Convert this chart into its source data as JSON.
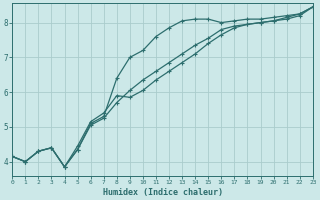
{
  "xlabel": "Humidex (Indice chaleur)",
  "ylabel": "",
  "background_color": "#cce8e8",
  "grid_color": "#aacccc",
  "line_color": "#2d6e6e",
  "x_values": [
    0,
    1,
    2,
    3,
    4,
    5,
    6,
    7,
    8,
    9,
    10,
    11,
    12,
    13,
    14,
    15,
    16,
    17,
    18,
    19,
    20,
    21,
    22,
    23
  ],
  "line1_y": [
    4.15,
    4.0,
    4.3,
    4.4,
    3.85,
    4.35,
    5.1,
    5.3,
    6.4,
    7.0,
    7.2,
    7.6,
    7.85,
    8.05,
    8.1,
    8.1,
    8.0,
    8.05,
    8.1,
    8.1,
    8.15,
    8.2,
    8.25,
    8.45
  ],
  "line2_y": [
    4.15,
    4.0,
    4.3,
    4.4,
    3.85,
    4.45,
    5.15,
    5.4,
    5.9,
    5.85,
    6.05,
    6.35,
    6.6,
    6.85,
    7.1,
    7.4,
    7.65,
    7.85,
    7.95,
    8.0,
    8.05,
    8.15,
    8.25,
    8.45
  ],
  "line3_y": [
    4.15,
    4.0,
    4.3,
    4.4,
    3.85,
    4.35,
    5.05,
    5.25,
    5.7,
    6.05,
    6.35,
    6.6,
    6.85,
    7.1,
    7.35,
    7.55,
    7.8,
    7.9,
    7.95,
    8.0,
    8.05,
    8.1,
    8.2,
    8.45
  ],
  "ylim": [
    3.6,
    8.55
  ],
  "xlim": [
    0,
    23
  ],
  "yticks": [
    4,
    5,
    6,
    7,
    8
  ],
  "xticks": [
    0,
    1,
    2,
    3,
    4,
    5,
    6,
    7,
    8,
    9,
    10,
    11,
    12,
    13,
    14,
    15,
    16,
    17,
    18,
    19,
    20,
    21,
    22,
    23
  ],
  "xtick_labels": [
    "0",
    "1",
    "2",
    "3",
    "4",
    "5",
    "6",
    "7",
    "8",
    "9",
    "10",
    "11",
    "12",
    "13",
    "14",
    "15",
    "16",
    "17",
    "18",
    "19",
    "20",
    "21",
    "22",
    "23"
  ]
}
